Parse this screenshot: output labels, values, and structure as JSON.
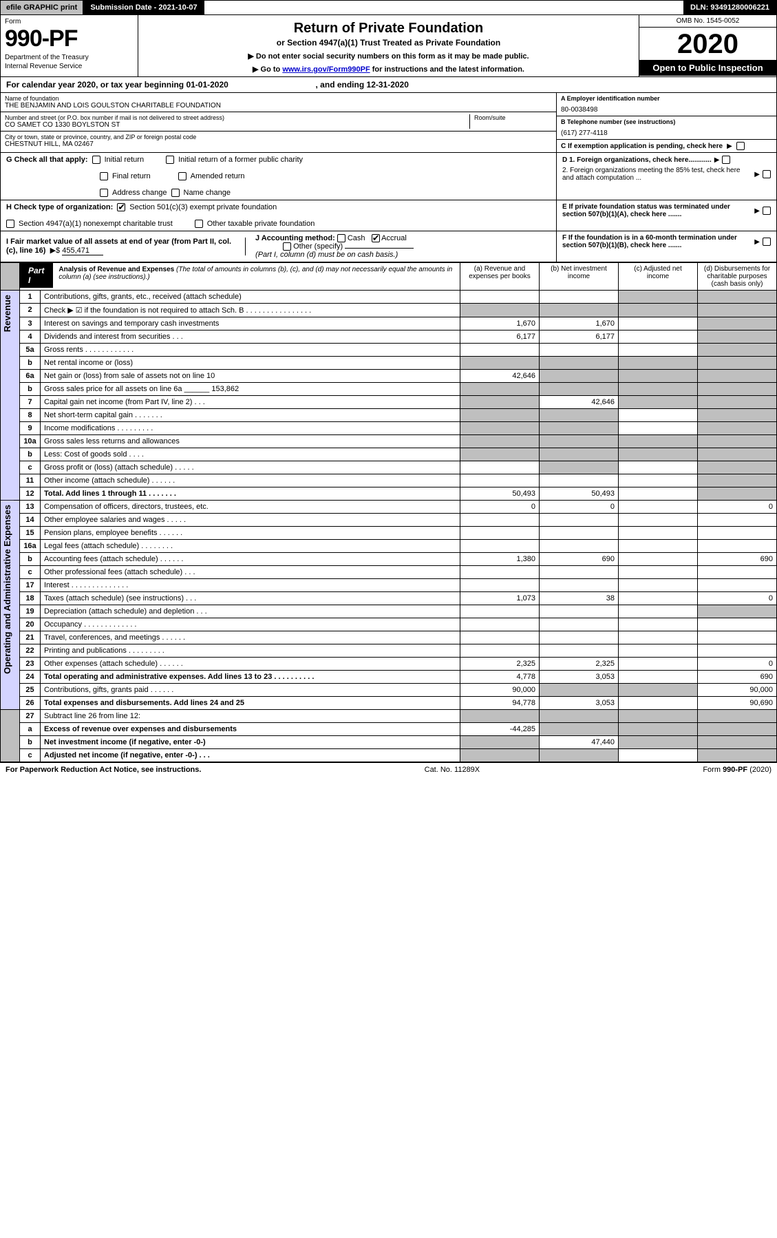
{
  "topbar": {
    "efile": "efile",
    "graphic": "GRAPHIC",
    "print": "print",
    "submission": "Submission Date - 2021-10-07",
    "dln": "DLN: 93491280006221"
  },
  "header": {
    "form_label": "Form",
    "form_number": "990-PF",
    "dept": "Department of the Treasury",
    "irs": "Internal Revenue Service",
    "title": "Return of Private Foundation",
    "subtitle": "or Section 4947(a)(1) Trust Treated as Private Foundation",
    "note1": "▶ Do not enter social security numbers on this form as it may be made public.",
    "note2_prefix": "▶ Go to ",
    "note2_link": "www.irs.gov/Form990PF",
    "note2_suffix": " for instructions and the latest information.",
    "omb": "OMB No. 1545-0052",
    "year": "2020",
    "open": "Open to Public Inspection"
  },
  "calyear": {
    "text_a": "For calendar year 2020, or tax year beginning 01-01-2020",
    "text_b": ", and ending 12-31-2020"
  },
  "info": {
    "name_label": "Name of foundation",
    "name": "THE BENJAMIN AND LOIS GOULSTON CHARITABLE FOUNDATION",
    "addr_label": "Number and street (or P.O. box number if mail is not delivered to street address)",
    "addr": "CO SAMET CO 1330 BOYLSTON ST",
    "room_label": "Room/suite",
    "city_label": "City or town, state or province, country, and ZIP or foreign postal code",
    "city": "CHESTNUT HILL, MA  02467",
    "ein_label": "A Employer identification number",
    "ein": "80-0038498",
    "phone_label": "B Telephone number (see instructions)",
    "phone": "(617) 277-4118",
    "c": "C If exemption application is pending, check here",
    "d1": "D 1. Foreign organizations, check here............",
    "d2": "2. Foreign organizations meeting the 85% test, check here and attach computation ...",
    "e": "E  If private foundation status was terminated under section 507(b)(1)(A), check here .......",
    "f": "F  If the foundation is in a 60-month termination under section 507(b)(1)(B), check here ......."
  },
  "checks": {
    "g_label": "G Check all that apply:",
    "g_initial": "Initial return",
    "g_initial_former": "Initial return of a former public charity",
    "g_final": "Final return",
    "g_amended": "Amended return",
    "g_address": "Address change",
    "g_name": "Name change",
    "h_label": "H Check type of organization:",
    "h_501c3": "Section 501(c)(3) exempt private foundation",
    "h_4947": "Section 4947(a)(1) nonexempt charitable trust",
    "h_other_tax": "Other taxable private foundation",
    "i_label": "I Fair market value of all assets at end of year (from Part II, col. (c), line 16)",
    "i_value": "455,471",
    "j_label": "J Accounting method:",
    "j_cash": "Cash",
    "j_accrual": "Accrual",
    "j_other": "Other (specify)",
    "j_note": "(Part I, column (d) must be on cash basis.)"
  },
  "part1": {
    "label": "Part I",
    "title": "Analysis of Revenue and Expenses",
    "title_note": " (The total of amounts in columns (b), (c), and (d) may not necessarily equal the amounts in column (a) (see instructions).)",
    "col_a": "(a) Revenue and expenses per books",
    "col_b": "(b) Net investment income",
    "col_c": "(c) Adjusted net income",
    "col_d": "(d) Disbursements for charitable purposes (cash basis only)"
  },
  "sections": {
    "revenue": "Revenue",
    "expenses": "Operating and Administrative Expenses"
  },
  "rows": [
    {
      "n": "1",
      "d": "Contributions, gifts, grants, etc., received (attach schedule)",
      "a": "",
      "b": "",
      "c": "shaded",
      "dcol": "shaded"
    },
    {
      "n": "2",
      "d": "Check ▶ ☑ if the foundation is not required to attach Sch. B   .  .  .  .  .  .  .  .  .  .  .  .  .  .  .  .",
      "a": "shaded",
      "b": "shaded",
      "c": "shaded",
      "dcol": "shaded"
    },
    {
      "n": "3",
      "d": "Interest on savings and temporary cash investments",
      "a": "1,670",
      "b": "1,670",
      "c": "",
      "dcol": "shaded"
    },
    {
      "n": "4",
      "d": "Dividends and interest from securities   .   .   .",
      "a": "6,177",
      "b": "6,177",
      "c": "",
      "dcol": "shaded"
    },
    {
      "n": "5a",
      "d": "Gross rents   .   .   .   .   .   .   .   .   .   .   .   .",
      "a": "",
      "b": "",
      "c": "",
      "dcol": "shaded"
    },
    {
      "n": "b",
      "d": "Net rental income or (loss)  ",
      "a": "shaded",
      "b": "shaded",
      "c": "shaded",
      "dcol": "shaded"
    },
    {
      "n": "6a",
      "d": "Net gain or (loss) from sale of assets not on line 10",
      "a": "42,646",
      "b": "shaded",
      "c": "shaded",
      "dcol": "shaded"
    },
    {
      "n": "b",
      "d": "Gross sales price for all assets on line 6a ______ 153,862",
      "a": "shaded",
      "b": "shaded",
      "c": "shaded",
      "dcol": "shaded"
    },
    {
      "n": "7",
      "d": "Capital gain net income (from Part IV, line 2)   .   .   .",
      "a": "shaded",
      "b": "42,646",
      "c": "shaded",
      "dcol": "shaded"
    },
    {
      "n": "8",
      "d": "Net short-term capital gain   .   .   .   .   .   .   .",
      "a": "shaded",
      "b": "shaded",
      "c": "",
      "dcol": "shaded"
    },
    {
      "n": "9",
      "d": "Income modifications  .   .   .   .   .   .   .   .   .",
      "a": "shaded",
      "b": "shaded",
      "c": "",
      "dcol": "shaded"
    },
    {
      "n": "10a",
      "d": "Gross sales less returns and allowances",
      "a": "shaded",
      "b": "shaded",
      "c": "shaded",
      "dcol": "shaded"
    },
    {
      "n": "b",
      "d": "Less: Cost of goods sold    .   .   .   .",
      "a": "shaded",
      "b": "shaded",
      "c": "shaded",
      "dcol": "shaded"
    },
    {
      "n": "c",
      "d": "Gross profit or (loss) (attach schedule)   .   .   .   .   .",
      "a": "",
      "b": "shaded",
      "c": "",
      "dcol": "shaded"
    },
    {
      "n": "11",
      "d": "Other income (attach schedule)   .   .   .   .   .   .",
      "a": "",
      "b": "",
      "c": "",
      "dcol": "shaded"
    },
    {
      "n": "12",
      "d": "Total. Add lines 1 through 11   .   .   .   .   .   .   .",
      "a": "50,493",
      "b": "50,493",
      "c": "",
      "dcol": "shaded",
      "bold": true
    },
    {
      "n": "13",
      "d": "Compensation of officers, directors, trustees, etc.",
      "a": "0",
      "b": "0",
      "c": "",
      "dcol": "0",
      "sec": "exp"
    },
    {
      "n": "14",
      "d": "Other employee salaries and wages   .   .   .   .   .",
      "a": "",
      "b": "",
      "c": "",
      "dcol": "",
      "sec": "exp"
    },
    {
      "n": "15",
      "d": "Pension plans, employee benefits  .   .   .   .   .   .",
      "a": "",
      "b": "",
      "c": "",
      "dcol": "",
      "sec": "exp"
    },
    {
      "n": "16a",
      "d": "Legal fees (attach schedule)  .   .   .   .   .   .   .   .",
      "a": "",
      "b": "",
      "c": "",
      "dcol": "",
      "sec": "exp"
    },
    {
      "n": "b",
      "d": "Accounting fees (attach schedule)  .   .   .   .   .   .",
      "a": "1,380",
      "b": "690",
      "c": "",
      "dcol": "690",
      "sec": "exp"
    },
    {
      "n": "c",
      "d": "Other professional fees (attach schedule)   .   .   .",
      "a": "",
      "b": "",
      "c": "",
      "dcol": "",
      "sec": "exp"
    },
    {
      "n": "17",
      "d": "Interest  .   .   .   .   .   .   .   .   .   .   .   .   .   .",
      "a": "",
      "b": "",
      "c": "",
      "dcol": "",
      "sec": "exp"
    },
    {
      "n": "18",
      "d": "Taxes (attach schedule) (see instructions)    .   .   .",
      "a": "1,073",
      "b": "38",
      "c": "",
      "dcol": "0",
      "sec": "exp"
    },
    {
      "n": "19",
      "d": "Depreciation (attach schedule) and depletion    .   .   .",
      "a": "",
      "b": "",
      "c": "",
      "dcol": "shaded",
      "sec": "exp"
    },
    {
      "n": "20",
      "d": "Occupancy  .   .   .   .   .   .   .   .   .   .   .   .   .",
      "a": "",
      "b": "",
      "c": "",
      "dcol": "",
      "sec": "exp"
    },
    {
      "n": "21",
      "d": "Travel, conferences, and meetings  .   .   .   .   .   .",
      "a": "",
      "b": "",
      "c": "",
      "dcol": "",
      "sec": "exp"
    },
    {
      "n": "22",
      "d": "Printing and publications  .   .   .   .   .   .   .   .   .",
      "a": "",
      "b": "",
      "c": "",
      "dcol": "",
      "sec": "exp"
    },
    {
      "n": "23",
      "d": "Other expenses (attach schedule)  .   .   .   .   .   .",
      "a": "2,325",
      "b": "2,325",
      "c": "",
      "dcol": "0",
      "sec": "exp"
    },
    {
      "n": "24",
      "d": "Total operating and administrative expenses. Add lines 13 to 23   .   .   .   .   .   .   .   .   .   .",
      "a": "4,778",
      "b": "3,053",
      "c": "",
      "dcol": "690",
      "sec": "exp",
      "bold": true
    },
    {
      "n": "25",
      "d": "Contributions, gifts, grants paid    .   .   .   .   .   .",
      "a": "90,000",
      "b": "shaded",
      "c": "shaded",
      "dcol": "90,000",
      "sec": "exp"
    },
    {
      "n": "26",
      "d": "Total expenses and disbursements. Add lines 24 and 25",
      "a": "94,778",
      "b": "3,053",
      "c": "",
      "dcol": "90,690",
      "sec": "exp",
      "bold": true
    },
    {
      "n": "27",
      "d": "Subtract line 26 from line 12:",
      "a": "shaded",
      "b": "shaded",
      "c": "shaded",
      "dcol": "shaded",
      "sec": "none"
    },
    {
      "n": "a",
      "d": "Excess of revenue over expenses and disbursements",
      "a": "-44,285",
      "b": "shaded",
      "c": "shaded",
      "dcol": "shaded",
      "sec": "none",
      "bold": true
    },
    {
      "n": "b",
      "d": "Net investment income (if negative, enter -0-)",
      "a": "shaded",
      "b": "47,440",
      "c": "shaded",
      "dcol": "shaded",
      "sec": "none",
      "bold": true
    },
    {
      "n": "c",
      "d": "Adjusted net income (if negative, enter -0-)  .   .   .",
      "a": "shaded",
      "b": "shaded",
      "c": "",
      "dcol": "shaded",
      "sec": "none",
      "bold": true
    }
  ],
  "footer": {
    "left": "For Paperwork Reduction Act Notice, see instructions.",
    "mid": "Cat. No. 11289X",
    "right": "Form 990-PF (2020)"
  }
}
